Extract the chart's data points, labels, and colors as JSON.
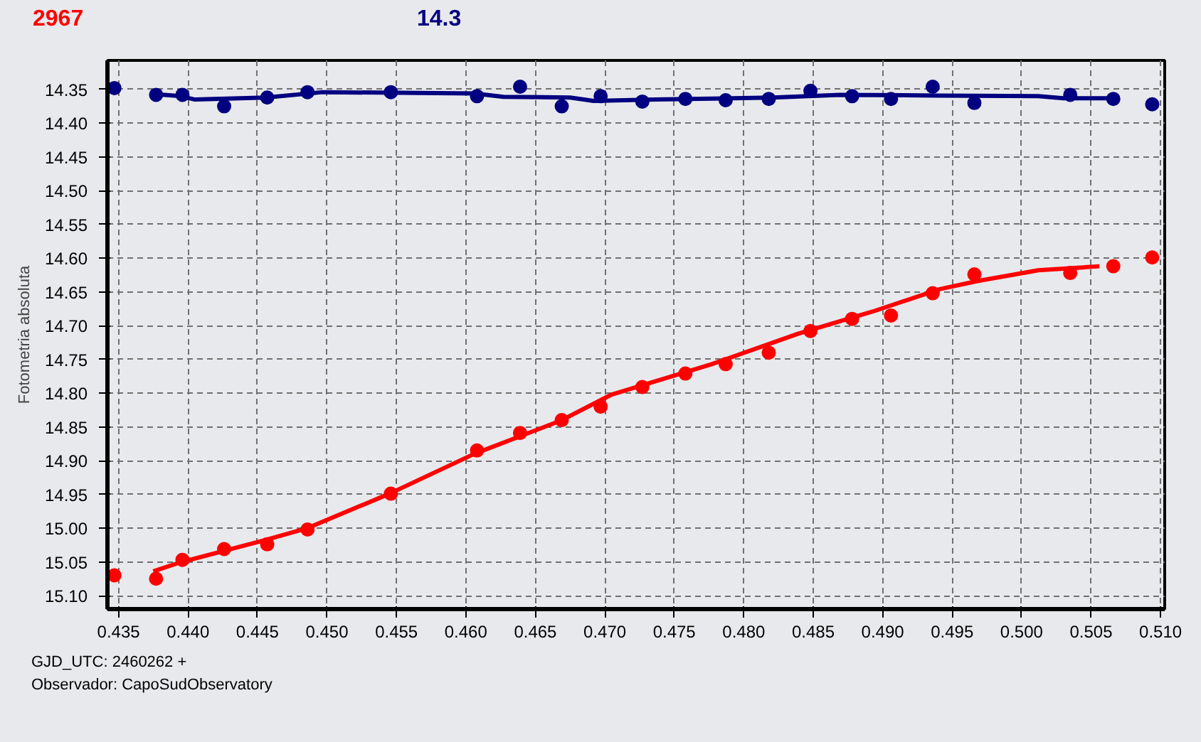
{
  "chart_data": {
    "type": "scatter",
    "ylabel": "Fotometria absoluta",
    "xlim": [
      0.4342,
      0.5103
    ],
    "ylim": [
      15.12,
      14.307
    ],
    "xticks": [
      {
        "value": 0.435,
        "label": "0.435"
      },
      {
        "value": 0.44,
        "label": "0.440"
      },
      {
        "value": 0.445,
        "label": "0.445"
      },
      {
        "value": 0.45,
        "label": "0.450"
      },
      {
        "value": 0.455,
        "label": "0.455"
      },
      {
        "value": 0.46,
        "label": "0.460"
      },
      {
        "value": 0.465,
        "label": "0.465"
      },
      {
        "value": 0.47,
        "label": "0.470"
      },
      {
        "value": 0.475,
        "label": "0.475"
      },
      {
        "value": 0.48,
        "label": "0.480"
      },
      {
        "value": 0.485,
        "label": "0.485"
      },
      {
        "value": 0.49,
        "label": "0.490"
      },
      {
        "value": 0.495,
        "label": "0.495"
      },
      {
        "value": 0.5,
        "label": "0.500"
      },
      {
        "value": 0.505,
        "label": "0.505"
      },
      {
        "value": 0.51,
        "label": "0.510"
      }
    ],
    "yticks": [
      {
        "value": 14.35,
        "label": "14.35"
      },
      {
        "value": 14.4,
        "label": "14.40"
      },
      {
        "value": 14.45,
        "label": "14.45"
      },
      {
        "value": 14.5,
        "label": "14.50"
      },
      {
        "value": 14.55,
        "label": "14.55"
      },
      {
        "value": 14.6,
        "label": "14.60"
      },
      {
        "value": 14.65,
        "label": "14.65"
      },
      {
        "value": 14.7,
        "label": "14.70"
      },
      {
        "value": 14.75,
        "label": "14.75"
      },
      {
        "value": 14.8,
        "label": "14.80"
      },
      {
        "value": 14.85,
        "label": "14.85"
      },
      {
        "value": 14.9,
        "label": "14.90"
      },
      {
        "value": 14.95,
        "label": "14.95"
      },
      {
        "value": 15.0,
        "label": "15.00"
      },
      {
        "value": 15.05,
        "label": "15.05"
      },
      {
        "value": 15.1,
        "label": "15.10"
      }
    ],
    "x": [
      0.4347,
      0.4377,
      0.4396,
      0.4426,
      0.4457,
      0.4486,
      0.4546,
      0.4608,
      0.4639,
      0.4669,
      0.4697,
      0.4727,
      0.4758,
      0.4787,
      0.4818,
      0.4848,
      0.4878,
      0.4906,
      0.4936,
      0.4966,
      0.5035,
      0.5066,
      0.5094
    ],
    "grid": true,
    "marker": "circle",
    "series": [
      {
        "name": "2967",
        "color": "#ff0000",
        "values": [
          15.07,
          15.075,
          15.047,
          15.031,
          15.024,
          15.002,
          14.949,
          14.885,
          14.859,
          14.84,
          14.82,
          14.791,
          14.771,
          14.757,
          14.74,
          14.708,
          14.69,
          14.685,
          14.652,
          14.624,
          14.622,
          14.612,
          14.599
        ]
      },
      {
        "name": "14.3",
        "color": "#000080",
        "values": [
          14.348,
          14.358,
          14.358,
          14.375,
          14.362,
          14.354,
          14.354,
          14.36,
          14.346,
          14.375,
          14.36,
          14.368,
          14.364,
          14.366,
          14.364,
          14.352,
          14.36,
          14.364,
          14.346,
          14.37,
          14.358,
          14.364,
          14.372
        ]
      },
      {
        "type": "line",
        "color": "#ff0000",
        "line_style": "solid",
        "marker": "none",
        "x": [
          0.4375,
          0.4394,
          0.4455,
          0.4486,
          0.4545,
          0.4606,
          0.4668,
          0.4705,
          0.4777,
          0.4839,
          0.4893,
          0.4941,
          0.4968,
          0.5012,
          0.5056
        ],
        "values": [
          15.064,
          15.051,
          15.018,
          15.0,
          14.949,
          14.89,
          14.841,
          14.802,
          14.757,
          14.712,
          14.679,
          14.646,
          14.634,
          14.618,
          14.612
        ]
      },
      {
        "type": "line",
        "color": "#000080",
        "line_style": "solid",
        "marker": "none",
        "x": [
          0.4376,
          0.4395,
          0.4405,
          0.4456,
          0.4497,
          0.4606,
          0.4627,
          0.4675,
          0.4692,
          0.4736,
          0.4821,
          0.4869,
          0.4941,
          0.5012,
          0.503,
          0.5066
        ],
        "values": [
          14.357,
          14.36,
          14.365,
          14.362,
          14.354,
          14.356,
          14.361,
          14.362,
          14.367,
          14.365,
          14.362,
          14.358,
          14.359,
          14.36,
          14.363,
          14.363
        ]
      }
    ],
    "annotations": [
      "GJD_UTC: 2460262 +",
      "Observador: CapoSudObservatory"
    ]
  }
}
